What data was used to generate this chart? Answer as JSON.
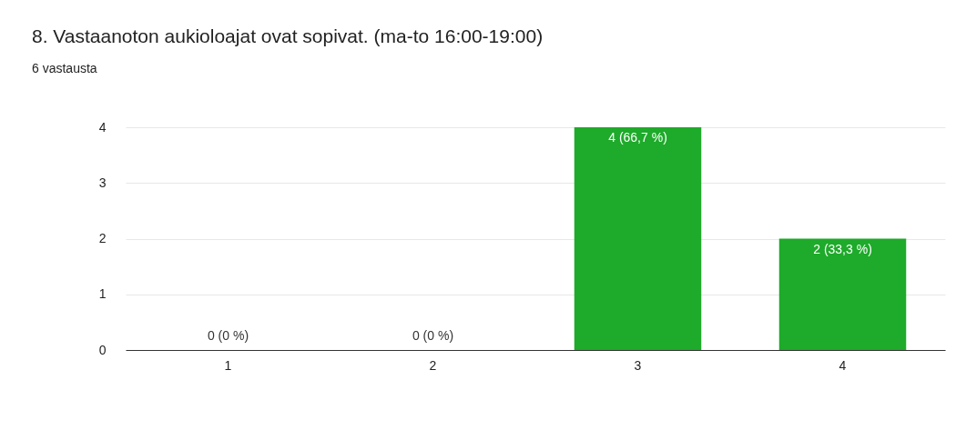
{
  "chart_data": {
    "type": "bar",
    "title": "8. Vastaanoton aukioloajat ovat sopivat. (ma-to 16:00-19:00)",
    "subtitle": "6 vastausta",
    "categories": [
      "1",
      "2",
      "3",
      "4"
    ],
    "values": [
      0,
      0,
      4,
      2
    ],
    "value_labels": [
      "0 (0 %)",
      "0 (0 %)",
      "4 (66,7 %)",
      "2 (33,3 %)"
    ],
    "color": "#1eaa2a",
    "ylim": [
      0,
      4
    ],
    "yticks": [
      0,
      1,
      2,
      3,
      4
    ],
    "grid": "y"
  }
}
